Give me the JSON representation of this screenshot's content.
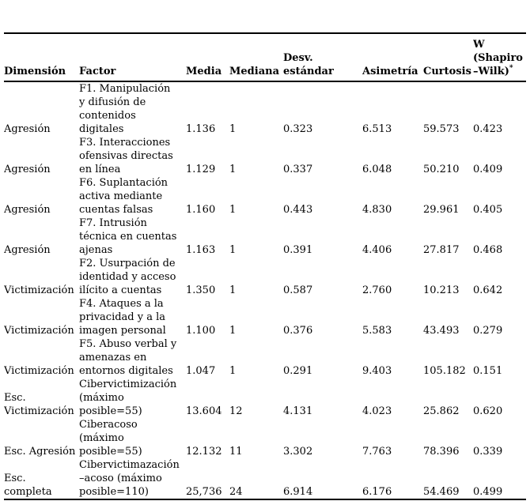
{
  "table": {
    "columns": [
      "Dimensión",
      "Factor",
      "Media",
      "Mediana",
      "Desv.\nestándar",
      "Asimetría",
      "Curtosis",
      "W\n(Shapiro\n–Wilk)"
    ],
    "w_superscript": "*",
    "rows": [
      [
        "Agresión",
        "F1. Manipulación\ny difusión de\ncontenidos\ndigitales",
        "1.136",
        "1",
        "0.323",
        "6.513",
        "59.573",
        "0.423"
      ],
      [
        "Agresión",
        "F3. Interacciones\nofensivas directas\nen línea",
        "1.129",
        "1",
        "0.337",
        "6.048",
        "50.210",
        "0.409"
      ],
      [
        "Agresión",
        "F6. Suplantación\nactiva mediante\ncuentas falsas",
        "1.160",
        "1",
        "0.443",
        "4.830",
        "29.961",
        "0.405"
      ],
      [
        "Agresión",
        "F7. Intrusión\ntécnica en cuentas\najenas",
        "1.163",
        "1",
        "0.391",
        "4.406",
        "27.817",
        "0.468"
      ],
      [
        "Victimización",
        "F2. Usurpación de\nidentidad y acceso\nilícito a cuentas",
        "1.350",
        "1",
        "0.587",
        "2.760",
        "10.213",
        "0.642"
      ],
      [
        "Victimización",
        "F4. Ataques a la\nprivacidad y a la\nimagen personal",
        "1.100",
        "1",
        "0.376",
        "5.583",
        "43.493",
        "0.279"
      ],
      [
        "Victimización",
        "F5. Abuso verbal y\namenazas en\nentornos digitales",
        "1.047",
        "1",
        "0.291",
        "9.403",
        "105.182",
        "0.151"
      ],
      [
        "Esc.\nVictimización",
        "Cibervictimización\n(máximo\nposible=55)",
        "13.604",
        "12",
        "4.131",
        "4.023",
        "25.862",
        "0.620"
      ],
      [
        "Esc. Agresión",
        "Ciberacoso\n(máximo\nposible=55)",
        "12.132",
        "11",
        "3.302",
        "7.763",
        "78.396",
        "0.339"
      ],
      [
        "Esc.\ncompleta",
        "Cibervictimazación\n–acoso (máximo\nposible=110)",
        "25,736",
        "24",
        "6.914",
        "6.176",
        "54.469",
        "0.499"
      ]
    ]
  }
}
